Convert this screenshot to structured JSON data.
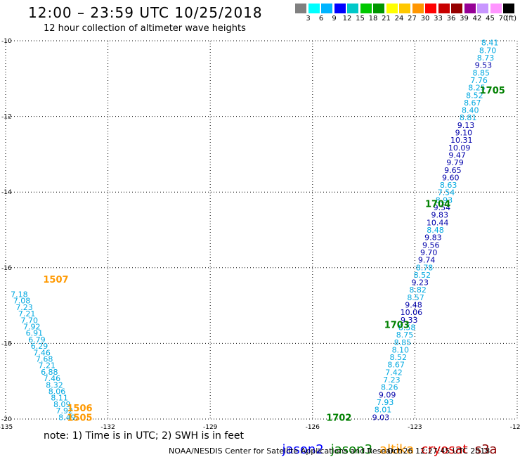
{
  "header": {
    "title": "12:00 – 23:59 UTC 10/25/2018",
    "subtitle": "12 hour collection of altimeter wave heights"
  },
  "colorbar": {
    "colors": [
      "#808080",
      "#00ffff",
      "#00b4ff",
      "#0000ff",
      "#00c8c8",
      "#00c800",
      "#009600",
      "#ffff00",
      "#ffc800",
      "#ff9600",
      "#ff0000",
      "#c80000",
      "#960000",
      "#960096",
      "#c896ff",
      "#ff96ff",
      "#000000"
    ],
    "labels": [
      "3",
      "6",
      "9",
      "12",
      "15",
      "18",
      "21",
      "24",
      "27",
      "30",
      "33",
      "36",
      "39",
      "42",
      "45",
      "70"
    ],
    "unit": "(ft)"
  },
  "map": {
    "lon_range": [
      -135,
      -120
    ],
    "lat_range": [
      -20,
      -10
    ],
    "lon_ticks": [
      "-135",
      "-132",
      "-129",
      "-126",
      "-123",
      "-120"
    ],
    "lat_ticks": [
      "-10",
      "-12",
      "-14",
      "-16",
      "-18",
      "-20"
    ],
    "tick_label_lon": [
      -135,
      -132,
      -129,
      -126,
      -123,
      -120
    ],
    "tick_label_lat": [
      -10,
      -12,
      -14,
      -16,
      -18,
      -20
    ],
    "grid": "dotted"
  },
  "colors": {
    "light": "#00a8e0",
    "dark": "#0000aa",
    "jason2": "#0000ff",
    "jason3": "#008000",
    "altika": "#ff9900",
    "cryosat": "#dd0000",
    "s3a": "#8b0000"
  },
  "tracks": [
    {
      "satellite": "jason3",
      "start": [
        -124.0,
        -19.95
      ],
      "end": [
        -120.8,
        -10.05
      ],
      "values": [
        "9.03",
        "8.01",
        "7.93",
        "9.09",
        "8.26",
        "7.23",
        "7.42",
        "8.67",
        "8.52",
        "8.10",
        "8.85",
        "8.75",
        "8.58",
        "9.33",
        "10.06",
        "9.48",
        "8.57",
        "8.82",
        "9.23",
        "8.52",
        "8.78",
        "9.74",
        "9.70",
        "9.56",
        "9.83",
        "8.48",
        "10.44",
        "9.83",
        "9.54",
        "8.93",
        "7.54",
        "8.63",
        "9.60",
        "9.65",
        "9.79",
        "9.47",
        "10.09",
        "10.31",
        "9.10",
        "9.13",
        "8.81",
        "8.40",
        "8.67",
        "8.52",
        "8.25",
        "7.76",
        "8.85",
        "9.53",
        "8.73",
        "8.70",
        "8.41"
      ]
    },
    {
      "satellite": "altika",
      "start": [
        -134.6,
        -16.7
      ],
      "end": [
        -133.2,
        -19.95
      ],
      "values": [
        "7.18",
        "7.08",
        "7.23",
        "7.21",
        "7.70",
        "7.92",
        "6.91",
        "6.79",
        "6.29",
        "7.46",
        "7.68",
        "7.21",
        "6.88",
        "7.46",
        "8.32",
        "8.06",
        "8.11",
        "8.09",
        "7.92",
        "8.49"
      ]
    }
  ],
  "pass_labels": [
    {
      "text": "1705",
      "satellite": "jason3",
      "lon": -121.1,
      "lat": -11.3
    },
    {
      "text": "1704",
      "satellite": "jason3",
      "lon": -122.7,
      "lat": -14.3
    },
    {
      "text": "1703",
      "satellite": "jason3",
      "lon": -123.9,
      "lat": -17.5
    },
    {
      "text": "1702",
      "satellite": "jason3",
      "lon": -125.6,
      "lat": -19.95
    },
    {
      "text": "1507",
      "satellite": "altika",
      "lon": -133.9,
      "lat": -16.3
    },
    {
      "text": "1506",
      "satellite": "altika",
      "lon": -133.2,
      "lat": -19.7
    },
    {
      "text": "1505",
      "satellite": "altika",
      "lon": -133.2,
      "lat": -19.95
    }
  ],
  "footer": {
    "note": "note: 1) Time is in UTC; 2) SWH is in feet",
    "satellites": [
      "jason2",
      "jason3",
      "altika",
      "cryosat",
      "s3a"
    ],
    "credit": "NOAA/NESDIS Center for Satellite Applications and Research",
    "timestamp": "Oct 26 12:27:45 UTC 2018"
  }
}
